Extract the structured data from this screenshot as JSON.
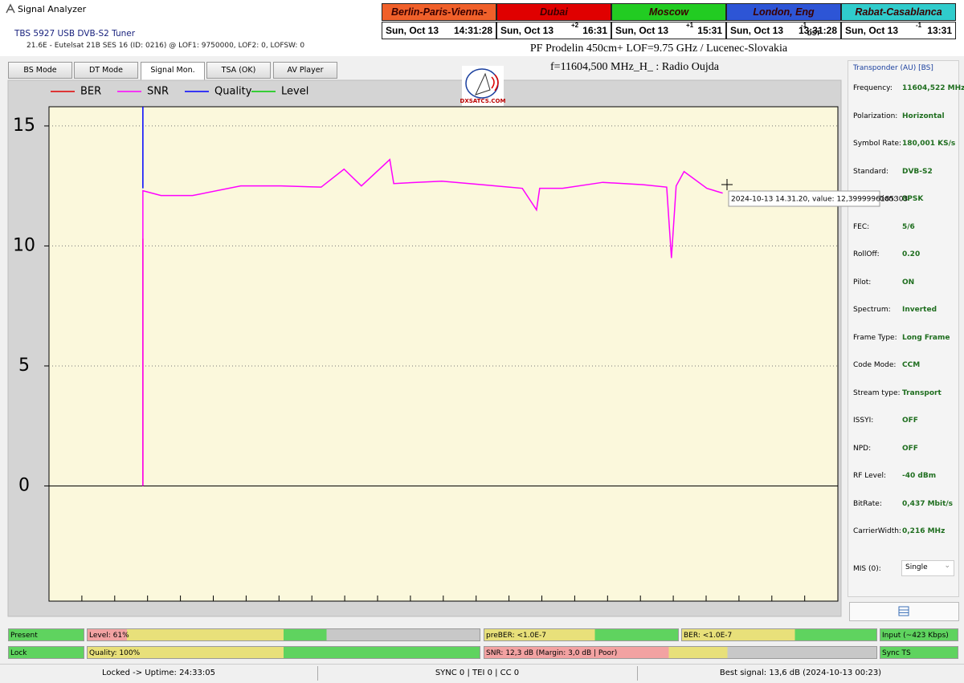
{
  "window": {
    "title": "Signal Analyzer"
  },
  "tuner": {
    "name": "TBS 5927 USB DVB-S2 Tuner",
    "info": "21.6E - Eutelsat 21B  SES 16 (ID: 0216) @ LOF1: 9750000, LOF2: 0, LOFSW: 0"
  },
  "clocks": [
    {
      "city": "Berlin-Paris-Vienna-Roma",
      "date": "Sun, Oct 13",
      "time": "14:31:28"
    },
    {
      "city": "Dubai",
      "date": "Sun, Oct 13",
      "offset": "+2",
      "time": "16:31"
    },
    {
      "city": "Moscow",
      "date": "Sun, Oct 13",
      "offset": "+1",
      "time": "15:31"
    },
    {
      "city": "London, Eng",
      "date": "Sun, Oct 13",
      "offset": "-1",
      "dst": "DST",
      "time": "13:31:28"
    },
    {
      "city": "Rabat-Casablanca",
      "date": "Sun, Oct 13",
      "offset": "-1",
      "time": "13:31"
    }
  ],
  "tabs": [
    "BS Mode",
    "DT Mode",
    "Signal Mon.",
    "TSA (OK)",
    "AV Player"
  ],
  "header": {
    "antenna": "PF Prodelin 450cm+ LOF=9.75 GHz / Lucenec-Slovakia",
    "channel": "f=11604,500 MHz_H_ : Radio Oujda",
    "uptime": "Locked Uptime : 24:33:05",
    "logo": "DXSATCS.COM"
  },
  "chart": {
    "type": "line",
    "xlim": [
      0,
      100
    ],
    "ylim": [
      -4.8,
      15.8
    ],
    "yticks": [
      15,
      10,
      5,
      0
    ],
    "grid": true,
    "zero_line": true,
    "series": [
      {
        "name": "BER",
        "color": "#e00000",
        "x": [
          11.9,
          11.9
        ],
        "values": [
          0,
          10.3
        ]
      },
      {
        "name": "SNR",
        "color": "#ff00ff",
        "x": [
          11.9,
          11.9,
          14.2,
          18.2,
          24.3,
          29.4,
          34.5,
          37.4,
          39.6,
          43.2,
          43.7,
          49.8,
          54.9,
          60.0,
          61.8,
          62.2,
          65.1,
          70.2,
          75.3,
          78.3,
          78.9,
          79.5,
          80.5,
          83.4,
          85.4
        ],
        "values": [
          0,
          12.3,
          12.1,
          12.1,
          12.5,
          12.5,
          12.45,
          13.2,
          12.5,
          13.6,
          12.6,
          12.7,
          12.55,
          12.4,
          11.5,
          12.4,
          12.4,
          12.65,
          12.55,
          12.45,
          9.5,
          12.5,
          13.1,
          12.4,
          12.2
        ]
      },
      {
        "name": "Quality",
        "color": "#0000ff",
        "x": [
          11.9,
          11.9
        ],
        "values": [
          12.4,
          15.8
        ]
      },
      {
        "name": "Level",
        "color": "#00cc00",
        "x": [],
        "values": []
      }
    ],
    "tooltip": "2024-10-13 14.31.20, value: 12,3999996185303"
  },
  "transponder": {
    "title": "Transponder (AU) [BS]",
    "rows": [
      [
        "Frequency:",
        "11604,522 MHz"
      ],
      [
        "Polarization:",
        "Horizontal"
      ],
      [
        "Symbol Rate:",
        "180,001 KS/s"
      ],
      [
        "Standard:",
        "DVB-S2"
      ],
      [
        "Modulation:",
        "8PSK"
      ],
      [
        "FEC:",
        "5/6"
      ],
      [
        "RollOff:",
        "0.20"
      ],
      [
        "Pilot:",
        "ON"
      ],
      [
        "Spectrum:",
        "Inverted"
      ],
      [
        "Frame Type:",
        "Long Frame"
      ],
      [
        "Code Mode:",
        "CCM"
      ],
      [
        "Stream type:",
        "Transport"
      ],
      [
        "ISSYI:",
        "OFF"
      ],
      [
        "NPD:",
        "OFF"
      ],
      [
        "RF Level:",
        "-40 dBm"
      ],
      [
        "BitRate:",
        "0,437 Mbit/s"
      ],
      [
        "CarrierWidth:",
        "0,216 MHz"
      ]
    ],
    "mis_label": "MIS (0):",
    "mis_value": "Single"
  },
  "meters": [
    "Present",
    "Level: 61%",
    "preBER: <1.0E-7",
    "BER: <1.0E-7",
    "Input (~423 Kbps)",
    "Lock",
    "Quality: 100%",
    "SNR: 12,3 dB (Margin: 3,0 dB | Poor)",
    "Sync TS"
  ],
  "status": [
    "Locked -> Uptime: 24:33:05",
    "SYNC 0 | TEI 0 | CC 0",
    "Best signal: 13,6 dB (2024-10-13 00:23)"
  ]
}
